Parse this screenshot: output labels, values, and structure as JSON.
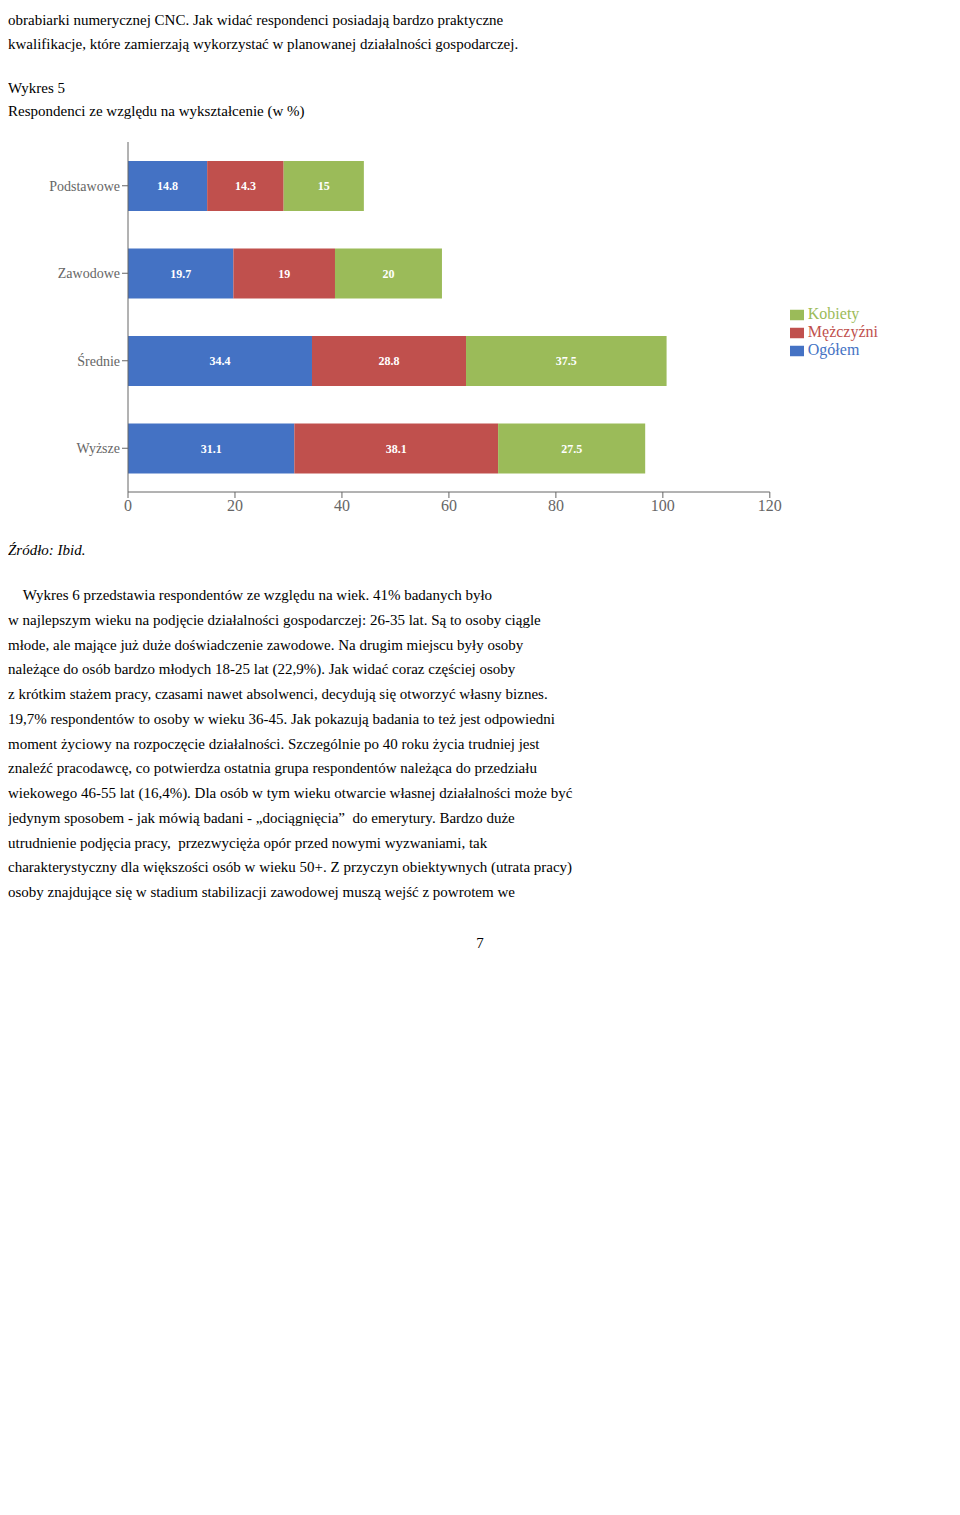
{
  "page_text_top": [
    "obrabiarki numerycznej CNC. Jak widać respondenci posiadają bardzo praktyczne",
    "kwalifikacje, które zamierzają wykorzystać w planowanej działalności gospodarczej."
  ],
  "figure_label": "Wykres 5",
  "chart_data": {
    "type": "bar",
    "title": "Respondenci ze względu na wykształcenie (w %)",
    "orientation": "horizontal",
    "stacked": true,
    "data_labels": true,
    "legend": "right",
    "grid": false,
    "categories": [
      "Podstawowe",
      "Zawodowe",
      "Średnie",
      "Wyższe"
    ],
    "series": [
      {
        "name": "Ogółem",
        "color": "#4472C4",
        "values": [
          14.8,
          19.7,
          34.4,
          31.1
        ]
      },
      {
        "name": "Mężczyźni",
        "color": "#C0504D",
        "values": [
          14.3,
          19.0,
          28.8,
          38.1
        ]
      },
      {
        "name": "Kobiety",
        "color": "#9BBB59",
        "values": [
          15.0,
          20.0,
          37.5,
          27.5
        ]
      }
    ],
    "xlim": [
      0,
      120
    ],
    "xticks": [
      0,
      20,
      40,
      60,
      80,
      100,
      120
    ]
  },
  "source_text": "Źródło: Ibid.",
  "body_text": [
    "    Wykres 6 przedstawia respondentów ze względu na wiek. 41% badanych było",
    "w najlepszym wieku na podjęcie działalności gospodarczej: 26-35 lat. Są to osoby ciągle",
    "młode, ale mające już duże doświadczenie zawodowe. Na drugim miejscu były osoby",
    "należące do osób bardzo młodych 18-25 lat (22,9%). Jak widać coraz częściej osoby",
    "z krótkim stażem pracy, czasami nawet absolwenci, decydują się otworzyć własny biznes.",
    "19,7% respondentów to osoby w wieku 36-45. Jak pokazują badania to też jest odpowiedni",
    "moment życiowy na rozpoczęcie działalności. Szczególnie po 40 roku życia trudniej jest",
    "znaleźć pracodawcę, co potwierdza ostatnia grupa respondentów należąca do przedziału",
    "wiekowego 46-55 lat (16,4%). Dla osób w tym wieku otwarcie własnej działalności może być",
    "jedynym sposobem - jak mówią badani - „dociągnięcia”  do emerytury. Bardzo duże",
    "utrudnienie podjęcia pracy,  przezwycięża opór przed nowymi wyzwaniami, tak",
    "charakterystyczny dla większości osób w wieku 50+. Z przyczyn obiektywnych (utrata pracy)",
    "osoby znajdujące się w stadium stabilizacji zawodowej muszą wejść z powrotem we"
  ],
  "page_number": "7"
}
